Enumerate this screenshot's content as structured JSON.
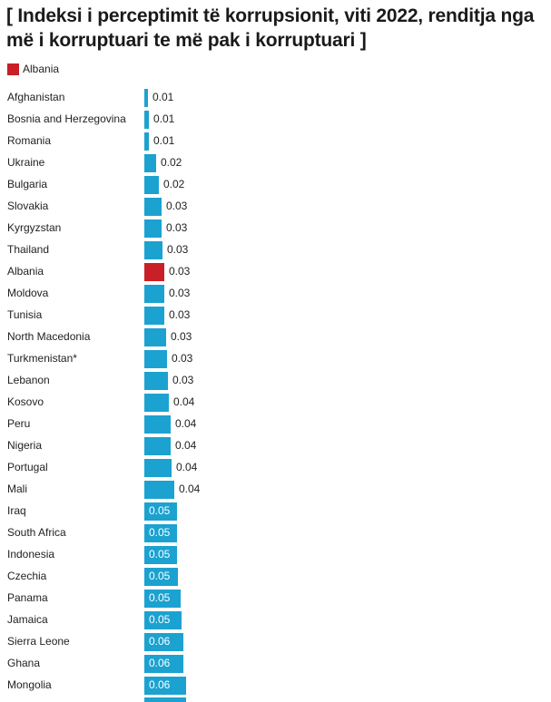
{
  "chart_data": {
    "type": "bar",
    "orientation": "horizontal",
    "title": "[ Indeksi i perceptimit të korrupsionit, viti 2022, renditja nga më i korruptuari te më pak i korruptuari ]",
    "legend": [
      {
        "label": "Albania",
        "color": "#c91f26"
      }
    ],
    "legend_position": "top-left",
    "default_color": "#1ba2d0",
    "highlight_color": "#c91f26",
    "highlight": "Albania",
    "categories": [
      "Afghanistan",
      "Bosnia and Herzegovina",
      "Romania",
      "Ukraine",
      "Bulgaria",
      "Slovakia",
      "Kyrgyzstan",
      "Thailand",
      "Albania",
      "Moldova",
      "Tunisia",
      "North Macedonia",
      "Turkmenistan*",
      "Lebanon",
      "Kosovo",
      "Peru",
      "Nigeria",
      "Portugal",
      "Mali",
      "Iraq",
      "South Africa",
      "Indonesia",
      "Czechia",
      "Panama",
      "Jamaica",
      "Sierra Leone",
      "Ghana",
      "Mongolia"
    ],
    "values": [
      0.0055,
      0.006,
      0.0065,
      0.017,
      0.021,
      0.025,
      0.0255,
      0.027,
      0.029,
      0.029,
      0.0295,
      0.032,
      0.033,
      0.034,
      0.036,
      0.038,
      0.039,
      0.04,
      0.044,
      0.048,
      0.048,
      0.048,
      0.049,
      0.053,
      0.054,
      0.057,
      0.057,
      0.061
    ],
    "labels": [
      "0.01",
      "0.01",
      "0.01",
      "0.02",
      "0.02",
      "0.03",
      "0.03",
      "0.03",
      "0.03",
      "0.03",
      "0.03",
      "0.03",
      "0.03",
      "0.03",
      "0.04",
      "0.04",
      "0.04",
      "0.04",
      "0.04",
      "0.05",
      "0.05",
      "0.05",
      "0.05",
      "0.05",
      "0.05",
      "0.06",
      "0.06",
      "0.06"
    ],
    "xlabel": "",
    "ylabel": "",
    "xlim": [
      0,
      0.07
    ],
    "grid": false
  }
}
